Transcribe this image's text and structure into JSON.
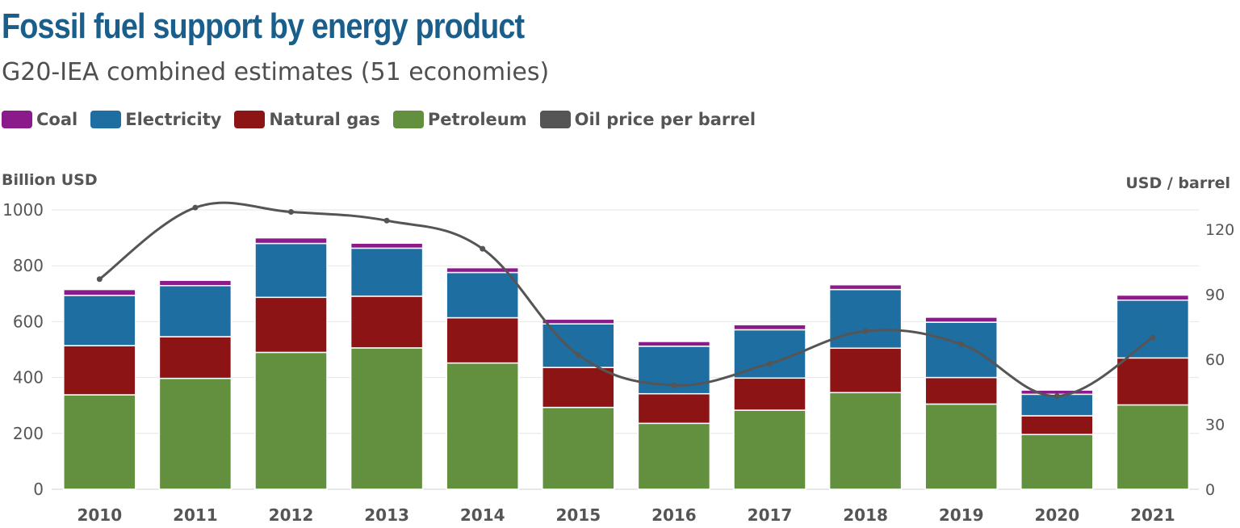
{
  "chart_data": {
    "type": "bar",
    "stacked": true,
    "title": "Fossil fuel support by energy product",
    "subtitle": "G20-IEA combined estimates (51 economies)",
    "ylabel": "Billion USD",
    "y2label": "USD / barrel",
    "ylim": [
      0,
      1000
    ],
    "y2lim": [
      0,
      130
    ],
    "yticks": [
      "0",
      "200",
      "400",
      "600",
      "800",
      "1000"
    ],
    "y2ticks": [
      "0",
      "30",
      "60",
      "90",
      "120"
    ],
    "categories": [
      "2010",
      "2011",
      "2012",
      "2013",
      "2014",
      "2015",
      "2016",
      "2017",
      "2018",
      "2019",
      "2020",
      "2021"
    ],
    "series": [
      {
        "name": "Petroleum",
        "color": "#63903f",
        "values": [
          338,
          397,
          490,
          506,
          452,
          293,
          236,
          283,
          346,
          305,
          196,
          302
        ]
      },
      {
        "name": "Natural gas",
        "color": "#8c1414",
        "values": [
          176,
          149,
          197,
          185,
          162,
          143,
          106,
          115,
          159,
          95,
          67,
          168
        ]
      },
      {
        "name": "Electricity",
        "color": "#1f6ea1",
        "values": [
          180,
          183,
          193,
          172,
          162,
          156,
          170,
          173,
          210,
          198,
          77,
          207
        ]
      },
      {
        "name": "Coal",
        "color": "#8b1a8b",
        "values": [
          21,
          19,
          20,
          18,
          17,
          17,
          17,
          18,
          17,
          18,
          15,
          18
        ]
      }
    ],
    "line": {
      "name": "Oil price per barrel",
      "color": "#555555",
      "axis": "right",
      "values": [
        97,
        130,
        128,
        124,
        111,
        62,
        48,
        58,
        73,
        67,
        43,
        70
      ]
    },
    "legend": [
      "Coal",
      "Electricity",
      "Natural gas",
      "Petroleum",
      "Oil price per barrel"
    ],
    "grid": true
  }
}
